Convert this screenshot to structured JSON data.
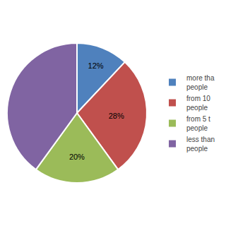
{
  "chart_data": {
    "type": "pie",
    "categories": [
      "more tha\npeople",
      "from 10 \npeople",
      "from 5 t\npeople",
      "less than\npeople"
    ],
    "values": [
      12,
      28,
      20,
      40
    ],
    "value_labels": [
      "12%",
      "28%",
      "20%",
      null
    ],
    "colors": [
      "#4f81bd",
      "#c0504d",
      "#9bbb59",
      "#8064a2"
    ],
    "data_labels": true,
    "legend": "right"
  }
}
